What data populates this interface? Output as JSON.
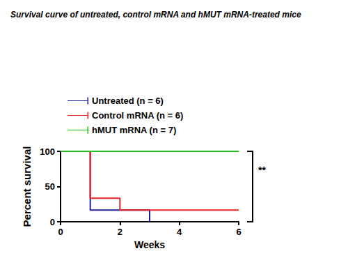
{
  "chart_data": {
    "type": "step",
    "title": "Survival curve of untreated, control mRNA and hMUT mRNA-treated mice",
    "x_label": "Weeks",
    "y_label": "Percent survival",
    "series": [
      {
        "name": "Untreated (n = 6)",
        "color": "#1f1f9e",
        "x": [
          0,
          1,
          3
        ],
        "values": [
          100,
          16.7,
          0
        ]
      },
      {
        "name": "Control mRNA (n = 6)",
        "color": "#e8201f",
        "x": [
          0,
          1,
          2,
          6
        ],
        "values": [
          100,
          33.3,
          16.7,
          16.7
        ]
      },
      {
        "name": "hMUT mRNA (n = 7)",
        "color": "#22c422",
        "x": [
          0,
          6
        ],
        "values": [
          100,
          100
        ]
      }
    ],
    "xlim": [
      0,
      6
    ],
    "xticks": [
      0,
      2,
      4,
      6
    ],
    "ylim": [
      0,
      100
    ],
    "yticks": [
      0,
      50,
      100
    ],
    "grid": false,
    "legend": "top-left",
    "annotation": "**"
  }
}
